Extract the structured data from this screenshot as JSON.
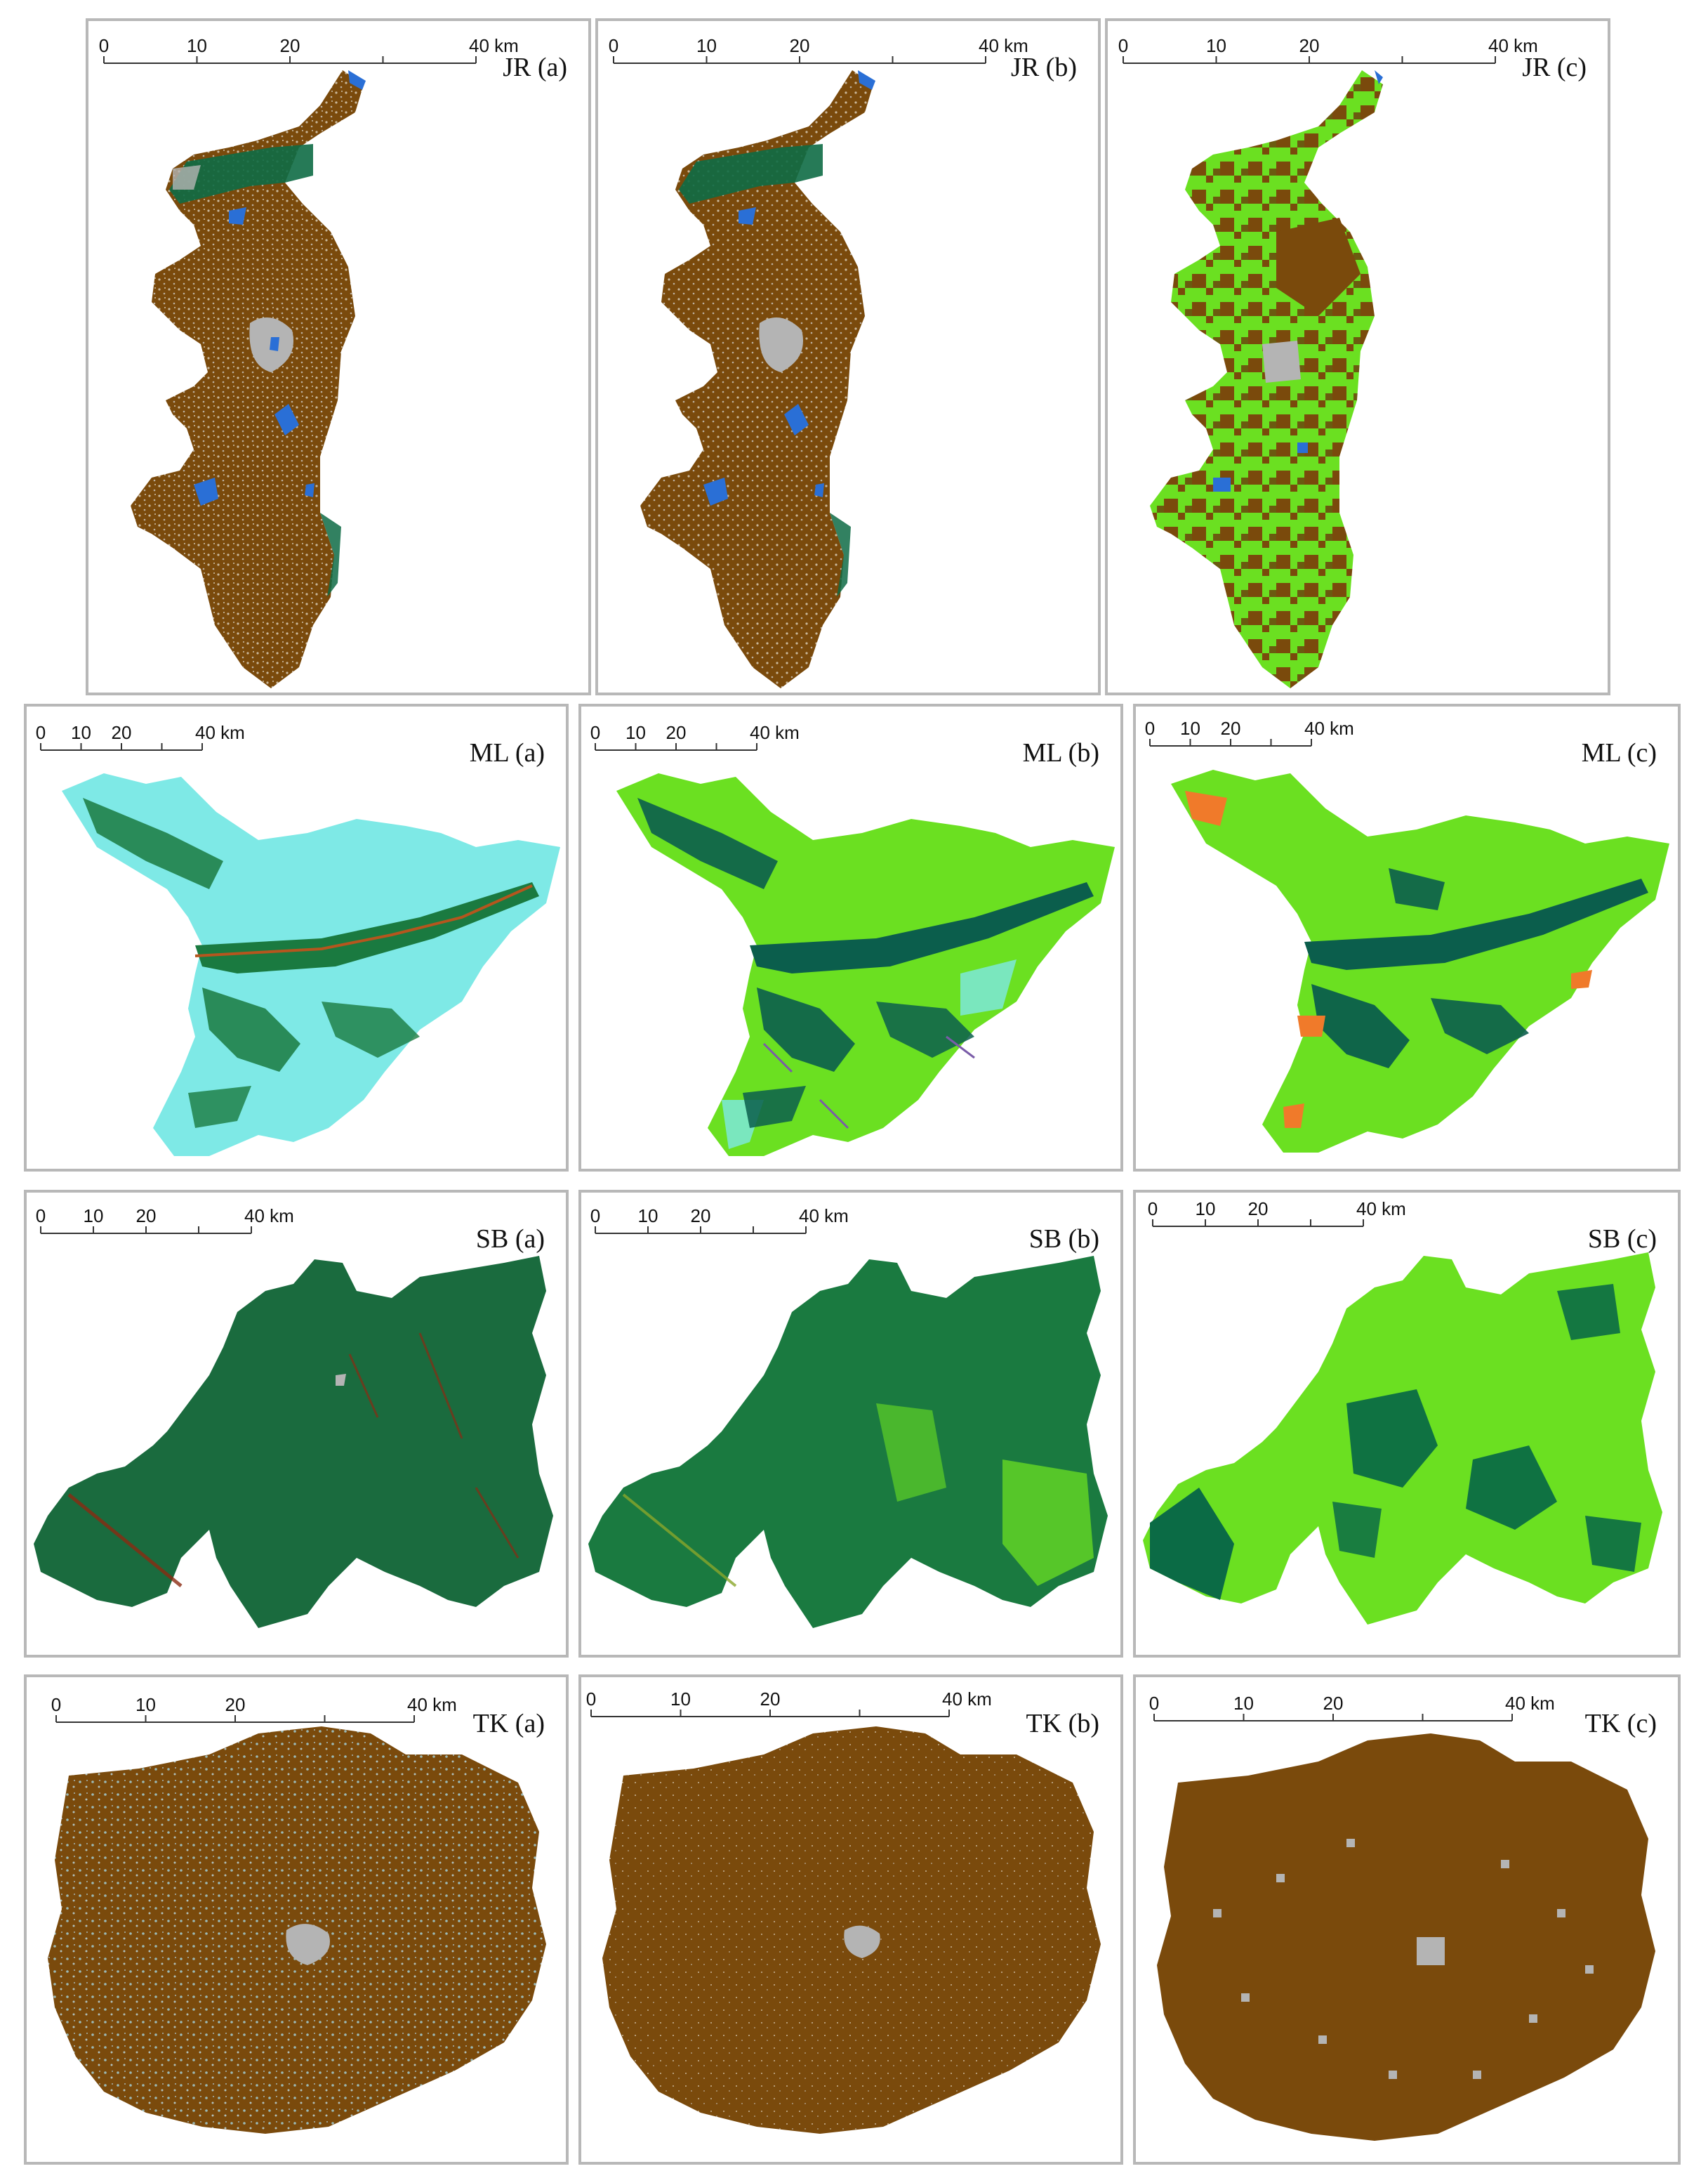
{
  "scale_bar": {
    "ticks": [
      "0",
      "10",
      "20",
      "40 km"
    ]
  },
  "colors": {
    "brown": "#7a4a0c",
    "dark_green": "#0e6b45",
    "forest": "#1a7a40",
    "grey": "#b4b4b4",
    "blue": "#2a6fd6",
    "lime": "#6be021",
    "cyan": "#7ee9e6",
    "teal_dark": "#0b5e4c",
    "orange": "#f07a2a",
    "purple": "#7a5ca8",
    "red_brown": "#8b2a12"
  },
  "panels": [
    {
      "id": "jr-a",
      "label": "JR (a)"
    },
    {
      "id": "jr-b",
      "label": "JR (b)"
    },
    {
      "id": "jr-c",
      "label": "JR (c)"
    },
    {
      "id": "ml-a",
      "label": "ML (a)"
    },
    {
      "id": "ml-b",
      "label": "ML (b)"
    },
    {
      "id": "ml-c",
      "label": "ML (c)"
    },
    {
      "id": "sb-a",
      "label": "SB (a)"
    },
    {
      "id": "sb-b",
      "label": "SB (b)"
    },
    {
      "id": "sb-c",
      "label": "SB (c)"
    },
    {
      "id": "tk-a",
      "label": "TK (a)"
    },
    {
      "id": "tk-b",
      "label": "TK (b)"
    },
    {
      "id": "tk-c",
      "label": "TK (c)"
    }
  ]
}
